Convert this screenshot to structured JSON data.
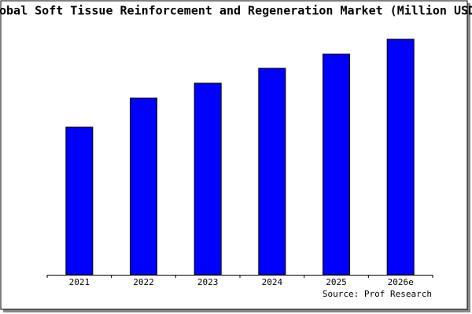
{
  "chart_data": {
    "type": "bar",
    "title": "Global Soft Tissue Reinforcement and Regeneration Market (Million USD)",
    "categories": [
      "2021",
      "2022",
      "2023",
      "2024",
      "2025",
      "2026e"
    ],
    "values": [
      188,
      225,
      244,
      263,
      281,
      300
    ],
    "color": "#0000ff",
    "ylim": [
      0,
      300
    ],
    "source": "Source: Prof Research"
  }
}
